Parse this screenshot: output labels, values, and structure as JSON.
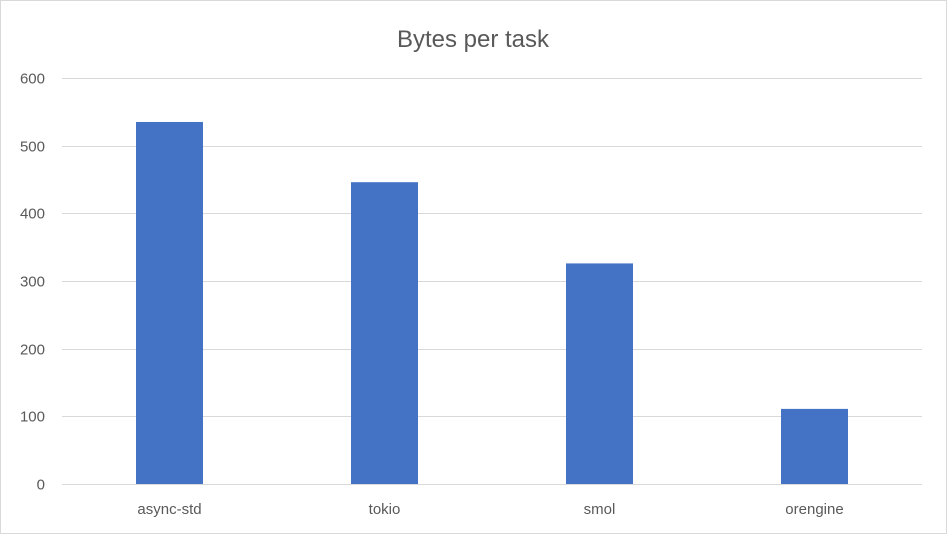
{
  "chart_data": {
    "type": "bar",
    "title": "Bytes per task",
    "xlabel": "",
    "ylabel": "",
    "categories": [
      "async-std",
      "tokio",
      "smol",
      "orengine"
    ],
    "values": [
      535,
      446,
      326,
      111
    ],
    "ylim": [
      0,
      600
    ],
    "yticks": [
      0,
      100,
      200,
      300,
      400,
      500,
      600
    ],
    "grid": true,
    "legend": "none",
    "bar_color": "#4472C4"
  }
}
